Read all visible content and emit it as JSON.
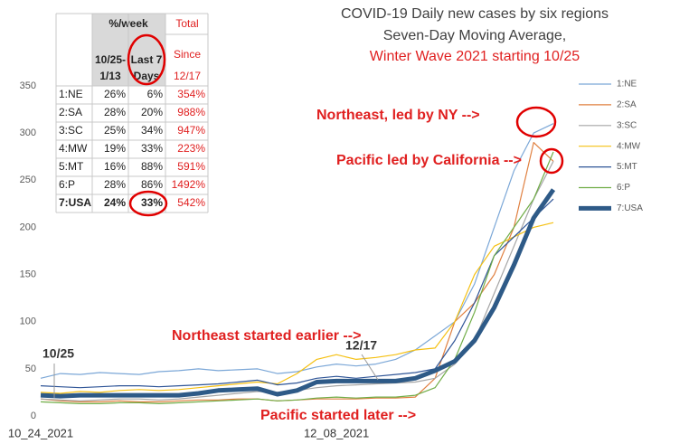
{
  "chart_data": {
    "type": "line",
    "title": "COVID-19 Daily new cases by six regions",
    "subtitle": [
      "Seven-Day Moving Average,",
      "Winter Wave 2021 starting 10/25"
    ],
    "categories": [
      "10_24_2021",
      null,
      null,
      null,
      null,
      null,
      null,
      null,
      null,
      null,
      null,
      null,
      null,
      null,
      null,
      "12_08_2021",
      null,
      null,
      null,
      null,
      null,
      null,
      null,
      null,
      null,
      null,
      null
    ],
    "ylim": [
      0,
      350
    ],
    "yticks": [
      0,
      50,
      100,
      150,
      200,
      250,
      300,
      350
    ],
    "grid": false,
    "legend": "right",
    "series": [
      {
        "name": "1:NE",
        "color": "#7ba7d7",
        "width": 1.2,
        "values": [
          40,
          45,
          44,
          46,
          45,
          44,
          47,
          48,
          50,
          48,
          49,
          50,
          45,
          47,
          52,
          55,
          53,
          55,
          60,
          70,
          85,
          100,
          140,
          200,
          260,
          300,
          310
        ]
      },
      {
        "name": "2:SA",
        "color": "#e08040",
        "width": 1.2,
        "values": [
          18,
          16,
          15,
          15,
          16,
          15,
          15,
          16,
          17,
          17,
          18,
          18,
          16,
          17,
          18,
          18,
          18,
          19,
          19,
          20,
          40,
          100,
          120,
          150,
          200,
          290,
          270
        ]
      },
      {
        "name": "3:SC",
        "color": "#a5a5a5",
        "width": 1.2,
        "values": [
          18,
          17,
          16,
          17,
          18,
          18,
          17,
          18,
          20,
          22,
          24,
          26,
          25,
          27,
          30,
          32,
          33,
          34,
          35,
          36,
          40,
          55,
          80,
          130,
          180,
          230,
          270
        ]
      },
      {
        "name": "4:MW",
        "color": "#f5c012",
        "width": 1.2,
        "values": [
          25,
          24,
          26,
          25,
          27,
          28,
          27,
          28,
          30,
          32,
          34,
          36,
          34,
          45,
          60,
          65,
          60,
          62,
          65,
          70,
          72,
          100,
          150,
          180,
          190,
          200,
          205
        ]
      },
      {
        "name": "5:MT",
        "color": "#2f5597",
        "width": 1.2,
        "values": [
          32,
          31,
          30,
          31,
          32,
          32,
          31,
          32,
          33,
          34,
          36,
          38,
          33,
          35,
          40,
          42,
          40,
          42,
          44,
          46,
          50,
          80,
          120,
          170,
          190,
          210,
          230
        ]
      },
      {
        "name": "6:P",
        "color": "#70ad47",
        "width": 1.2,
        "values": [
          15,
          14,
          13,
          13,
          14,
          14,
          13,
          14,
          15,
          16,
          17,
          18,
          16,
          17,
          19,
          20,
          19,
          20,
          20,
          22,
          30,
          60,
          110,
          170,
          200,
          230,
          280
        ]
      },
      {
        "name": "7:USA",
        "color": "#2e5a87",
        "width": 5,
        "values": [
          22,
          21,
          22,
          22,
          22,
          22,
          22,
          22,
          24,
          27,
          28,
          29,
          23,
          27,
          36,
          37,
          37,
          37,
          37,
          40,
          48,
          58,
          80,
          115,
          160,
          210,
          240
        ]
      }
    ],
    "annotations": [
      "Northeast, led by NY -->",
      "Pacific led by California -->",
      "Northeast started earlier -->",
      "Pacific started later -->",
      "10/25",
      "12/17"
    ]
  },
  "table": {
    "header": {
      "group": "%/week",
      "total": "Total",
      "col1": [
        "10/25-",
        "1/13"
      ],
      "col2": [
        "Last 7",
        "Days"
      ],
      "col3": [
        "Since",
        "12/17"
      ]
    },
    "rows": [
      [
        "1:NE",
        "26%",
        "6%",
        "354%"
      ],
      [
        "2:SA",
        "28%",
        "20%",
        "988%"
      ],
      [
        "3:SC",
        "25%",
        "34%",
        "947%"
      ],
      [
        "4:MW",
        "19%",
        "33%",
        "223%"
      ],
      [
        "5:MT",
        "16%",
        "88%",
        "591%"
      ],
      [
        "6:P",
        "28%",
        "86%",
        "1492%"
      ],
      [
        "7:USA",
        "24%",
        "33%",
        "542%"
      ]
    ]
  }
}
